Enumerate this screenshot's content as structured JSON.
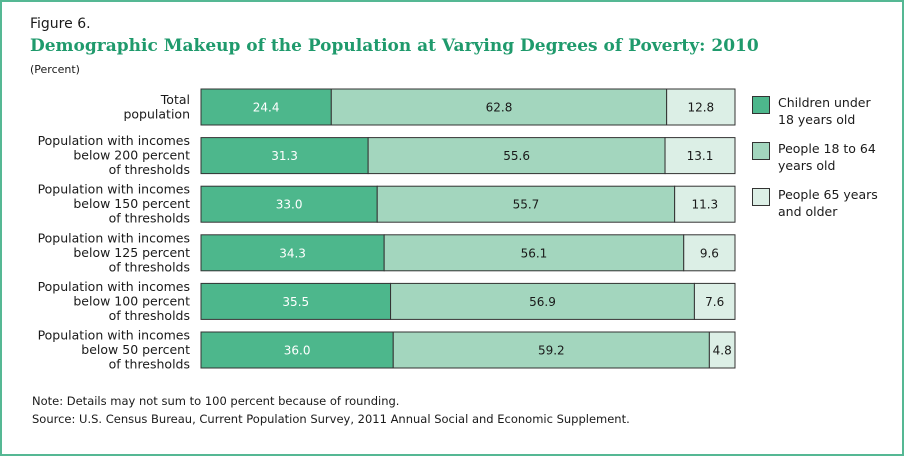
{
  "figure_label": "Figure 6.",
  "note": "Note:  Details may not sum to 100 percent because of rounding.",
  "source": "Source: U.S. Census Bureau, Current Population Survey, 2011 Annual Social and Economic Supplement.",
  "colors": {
    "children": "#4db78c",
    "adults": "#a3d6be",
    "seniors": "#dcefe6",
    "title": "#1f9a6c",
    "frame": "#55b894"
  },
  "chart_data": {
    "type": "bar",
    "orientation": "horizontal",
    "stacked": true,
    "title": "Demographic Makeup of the Population at Varying Degrees of Poverty: 2010",
    "unit_label": "(Percent)",
    "xlim": [
      0,
      100
    ],
    "legend_position": "right",
    "categories": [
      [
        "Total",
        "population"
      ],
      [
        "Population with incomes",
        "below 200 percent",
        "of thresholds"
      ],
      [
        "Population with incomes",
        "below 150 percent",
        "of thresholds"
      ],
      [
        "Population with incomes",
        "below 125 percent",
        "of thresholds"
      ],
      [
        "Population with incomes",
        "below 100 percent",
        "of thresholds"
      ],
      [
        "Population with incomes",
        "below 50 percent",
        "of thresholds"
      ]
    ],
    "series": [
      {
        "name": "Children under 18 years old",
        "legend_lines": [
          "Children under",
          "18 years old"
        ],
        "values": [
          24.4,
          31.3,
          33.0,
          34.3,
          35.5,
          36.0
        ]
      },
      {
        "name": "People 18 to 64 years old",
        "legend_lines": [
          "People 18 to 64",
          "years old"
        ],
        "values": [
          62.8,
          55.6,
          55.7,
          56.1,
          56.9,
          59.2
        ]
      },
      {
        "name": "People 65 years and older",
        "legend_lines": [
          "People 65 years",
          "and older"
        ],
        "values": [
          12.8,
          13.1,
          11.3,
          9.6,
          7.6,
          4.8
        ]
      }
    ]
  }
}
